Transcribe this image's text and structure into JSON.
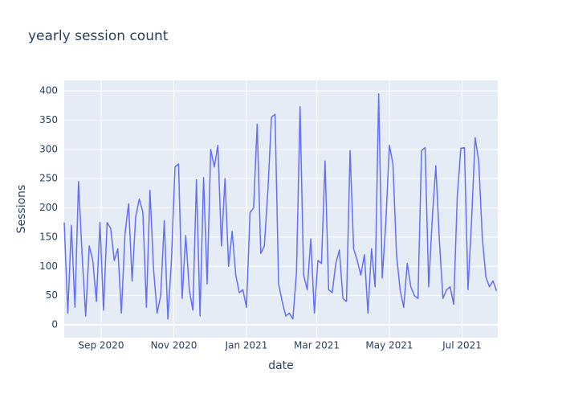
{
  "chart_data": {
    "type": "line",
    "title": "yearly session count",
    "x_label": "date",
    "y_label": "Sessions",
    "color": "#636efa",
    "grid": true,
    "x": [
      "2020-08-01",
      "2020-08-04",
      "2020-08-07",
      "2020-08-10",
      "2020-08-13",
      "2020-08-16",
      "2020-08-19",
      "2020-08-22",
      "2020-08-25",
      "2020-08-28",
      "2020-08-31",
      "2020-09-03",
      "2020-09-06",
      "2020-09-09",
      "2020-09-12",
      "2020-09-15",
      "2020-09-18",
      "2020-09-21",
      "2020-09-24",
      "2020-09-27",
      "2020-09-30",
      "2020-10-03",
      "2020-10-06",
      "2020-10-09",
      "2020-10-12",
      "2020-10-15",
      "2020-10-18",
      "2020-10-21",
      "2020-10-24",
      "2020-10-27",
      "2020-10-30",
      "2020-11-02",
      "2020-11-05",
      "2020-11-08",
      "2020-11-11",
      "2020-11-14",
      "2020-11-17",
      "2020-11-20",
      "2020-11-23",
      "2020-11-26",
      "2020-11-29",
      "2020-12-02",
      "2020-12-05",
      "2020-12-08",
      "2020-12-11",
      "2020-12-14",
      "2020-12-17",
      "2020-12-20",
      "2020-12-23",
      "2020-12-26",
      "2020-12-29",
      "2021-01-01",
      "2021-01-04",
      "2021-01-07",
      "2021-01-10",
      "2021-01-13",
      "2021-01-16",
      "2021-01-19",
      "2021-01-22",
      "2021-01-25",
      "2021-01-28",
      "2021-01-31",
      "2021-02-03",
      "2021-02-06",
      "2021-02-09",
      "2021-02-12",
      "2021-02-15",
      "2021-02-18",
      "2021-02-21",
      "2021-02-24",
      "2021-02-27",
      "2021-03-02",
      "2021-03-05",
      "2021-03-08",
      "2021-03-11",
      "2021-03-14",
      "2021-03-17",
      "2021-03-20",
      "2021-03-23",
      "2021-03-26",
      "2021-03-29",
      "2021-04-01",
      "2021-04-04",
      "2021-04-07",
      "2021-04-10",
      "2021-04-13",
      "2021-04-16",
      "2021-04-19",
      "2021-04-22",
      "2021-04-25",
      "2021-04-28",
      "2021-05-01",
      "2021-05-04",
      "2021-05-07",
      "2021-05-10",
      "2021-05-13",
      "2021-05-16",
      "2021-05-19",
      "2021-05-22",
      "2021-05-25",
      "2021-05-28",
      "2021-05-31",
      "2021-06-03",
      "2021-06-06",
      "2021-06-09",
      "2021-06-12",
      "2021-06-15",
      "2021-06-18",
      "2021-06-21",
      "2021-06-24",
      "2021-06-27",
      "2021-06-30",
      "2021-07-03",
      "2021-07-06",
      "2021-07-09",
      "2021-07-12",
      "2021-07-15",
      "2021-07-18",
      "2021-07-21",
      "2021-07-24",
      "2021-07-27",
      "2021-07-30"
    ],
    "values": [
      175,
      20,
      170,
      30,
      245,
      120,
      15,
      135,
      110,
      40,
      175,
      25,
      175,
      165,
      110,
      130,
      20,
      155,
      207,
      75,
      185,
      215,
      193,
      30,
      230,
      95,
      20,
      50,
      178,
      10,
      110,
      270,
      275,
      45,
      153,
      60,
      25,
      248,
      15,
      252,
      70,
      300,
      270,
      307,
      135,
      250,
      100,
      160,
      85,
      55,
      60,
      30,
      192,
      200,
      343,
      122,
      135,
      230,
      355,
      360,
      70,
      40,
      15,
      20,
      10,
      90,
      373,
      85,
      60,
      147,
      20,
      110,
      105,
      280,
      60,
      55,
      105,
      128,
      45,
      40,
      298,
      130,
      110,
      85,
      120,
      20,
      130,
      65,
      395,
      80,
      175,
      307,
      275,
      120,
      60,
      30,
      105,
      65,
      50,
      45,
      298,
      303,
      65,
      182,
      272,
      143,
      45,
      60,
      65,
      35,
      220,
      302,
      303,
      60,
      178,
      320,
      280,
      150,
      82,
      65,
      75,
      58
    ],
    "xlim": [
      "2020-08-01",
      "2021-07-31"
    ],
    "xticks": [
      {
        "value": "2020-09-01",
        "label": "Sep 2020"
      },
      {
        "value": "2020-11-01",
        "label": "Nov 2020"
      },
      {
        "value": "2021-01-01",
        "label": "Jan 2021"
      },
      {
        "value": "2021-03-01",
        "label": "Mar 2021"
      },
      {
        "value": "2021-05-01",
        "label": "May 2021"
      },
      {
        "value": "2021-07-01",
        "label": "Jul 2021"
      }
    ],
    "ylim": [
      -22,
      418
    ],
    "yticks": [
      0,
      50,
      100,
      150,
      200,
      250,
      300,
      350,
      400
    ]
  }
}
